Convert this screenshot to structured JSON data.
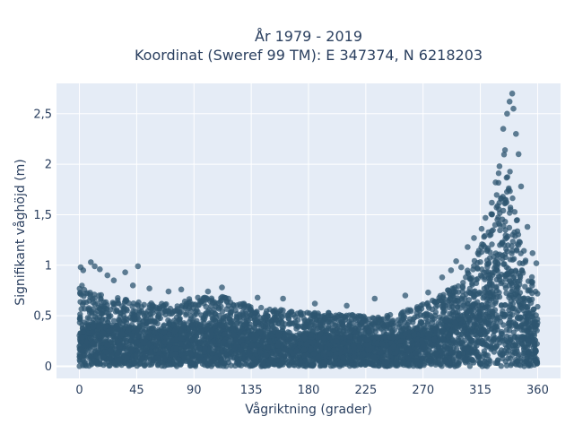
{
  "chart_data": {
    "type": "scatter",
    "title_lines": [
      "År 1979 - 2019",
      "Koordinat (Sweref 99 TM): E 347374, N 6218203"
    ],
    "xlabel": "Vågriktning (grader)",
    "ylabel": "Signifikant våghöjd (m)",
    "xlim": [
      -18,
      378
    ],
    "ylim": [
      -0.12,
      2.8
    ],
    "x_ticks": [
      0,
      45,
      90,
      135,
      180,
      225,
      270,
      315,
      360
    ],
    "x_tick_labels": [
      "0",
      "45",
      "90",
      "135",
      "180",
      "225",
      "270",
      "315",
      "360"
    ],
    "y_ticks": [
      0,
      0.5,
      1,
      1.5,
      2,
      2.5
    ],
    "y_tick_labels": [
      "0",
      "0,5",
      "1",
      "1,5",
      "2",
      "2,5"
    ],
    "grid": true,
    "marker_color": "#2e5670",
    "plot_background": "#e5ecf6",
    "envelope": {
      "x": [
        0,
        5,
        10,
        20,
        30,
        45,
        60,
        75,
        90,
        105,
        120,
        135,
        150,
        165,
        180,
        195,
        210,
        225,
        240,
        255,
        270,
        285,
        300,
        310,
        320,
        325,
        330,
        335,
        340,
        345,
        350,
        355,
        360
      ],
      "upper_bound": [
        0.82,
        0.78,
        0.72,
        0.7,
        0.68,
        0.64,
        0.62,
        0.63,
        0.68,
        0.72,
        0.66,
        0.6,
        0.57,
        0.55,
        0.54,
        0.54,
        0.52,
        0.5,
        0.5,
        0.55,
        0.62,
        0.72,
        0.86,
        1.05,
        1.35,
        1.65,
        1.95,
        2.2,
        1.85,
        1.4,
        1.1,
        0.9,
        0.78
      ]
    },
    "outliers": [
      {
        "x": 1,
        "y": 0.98
      },
      {
        "x": 3,
        "y": 0.95
      },
      {
        "x": 9,
        "y": 1.03
      },
      {
        "x": 12,
        "y": 0.99
      },
      {
        "x": 16,
        "y": 0.96
      },
      {
        "x": 22,
        "y": 0.9
      },
      {
        "x": 27,
        "y": 0.85
      },
      {
        "x": 36,
        "y": 0.93
      },
      {
        "x": 42,
        "y": 0.8
      },
      {
        "x": 46,
        "y": 0.99
      },
      {
        "x": 55,
        "y": 0.77
      },
      {
        "x": 70,
        "y": 0.74
      },
      {
        "x": 80,
        "y": 0.76
      },
      {
        "x": 101,
        "y": 0.74
      },
      {
        "x": 112,
        "y": 0.78
      },
      {
        "x": 140,
        "y": 0.68
      },
      {
        "x": 160,
        "y": 0.67
      },
      {
        "x": 185,
        "y": 0.62
      },
      {
        "x": 210,
        "y": 0.6
      },
      {
        "x": 232,
        "y": 0.67
      },
      {
        "x": 256,
        "y": 0.7
      },
      {
        "x": 274,
        "y": 0.73
      },
      {
        "x": 285,
        "y": 0.88
      },
      {
        "x": 292,
        "y": 0.95
      },
      {
        "x": 296,
        "y": 1.04
      },
      {
        "x": 300,
        "y": 0.98
      },
      {
        "x": 305,
        "y": 1.18
      },
      {
        "x": 310,
        "y": 1.27
      },
      {
        "x": 316,
        "y": 1.36
      },
      {
        "x": 319,
        "y": 1.47
      },
      {
        "x": 324,
        "y": 1.62
      },
      {
        "x": 327,
        "y": 1.82
      },
      {
        "x": 330,
        "y": 1.98
      },
      {
        "x": 333,
        "y": 2.35
      },
      {
        "x": 336,
        "y": 2.5
      },
      {
        "x": 338,
        "y": 2.62
      },
      {
        "x": 340,
        "y": 2.7
      },
      {
        "x": 341,
        "y": 2.55
      },
      {
        "x": 343,
        "y": 2.3
      },
      {
        "x": 345,
        "y": 2.1
      },
      {
        "x": 347,
        "y": 1.78
      },
      {
        "x": 352,
        "y": 1.38
      },
      {
        "x": 356,
        "y": 1.12
      },
      {
        "x": 359,
        "y": 1.02
      }
    ]
  }
}
